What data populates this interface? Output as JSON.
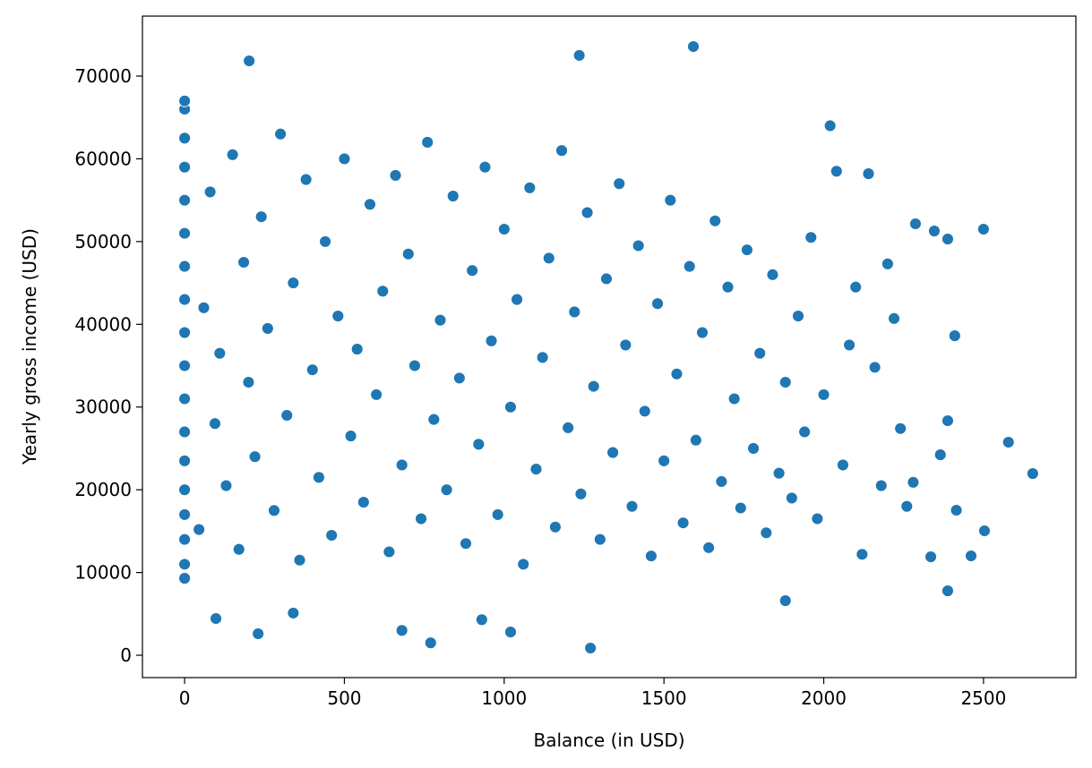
{
  "chart_data": {
    "type": "scatter",
    "xlabel": "Balance (in USD)",
    "ylabel": "Yearly gross income (USD)",
    "color": "#1f77b4",
    "xlim": [
      -132,
      2789
    ],
    "ylim": [
      -2700,
      77250
    ],
    "xticks": [
      0,
      500,
      1000,
      1500,
      2000,
      2500
    ],
    "yticks": [
      0,
      10000,
      20000,
      30000,
      40000,
      50000,
      60000,
      70000
    ],
    "x": [
      0,
      0,
      0,
      0,
      0,
      0,
      0,
      0,
      0,
      0,
      0,
      0,
      0,
      0,
      0,
      0,
      0,
      0,
      45,
      60,
      80,
      95,
      110,
      130,
      150,
      170,
      185,
      200,
      220,
      240,
      260,
      280,
      300,
      320,
      340,
      360,
      380,
      400,
      420,
      440,
      460,
      480,
      500,
      520,
      540,
      560,
      580,
      600,
      620,
      640,
      660,
      680,
      700,
      720,
      740,
      760,
      780,
      800,
      820,
      840,
      860,
      880,
      900,
      920,
      940,
      960,
      980,
      1000,
      1020,
      1040,
      1060,
      1080,
      1100,
      1120,
      1140,
      1160,
      1180,
      1200,
      1220,
      1240,
      1260,
      1280,
      1300,
      1320,
      1340,
      1360,
      1380,
      1400,
      1420,
      1440,
      1460,
      1480,
      1500,
      1520,
      1540,
      1560,
      1580,
      1600,
      1620,
      1640,
      1660,
      1680,
      1700,
      1720,
      1740,
      1760,
      1780,
      1800,
      1820,
      1840,
      1860,
      1880,
      1900,
      1920,
      1940,
      1960,
      1980,
      2000,
      2020,
      2040,
      2060,
      2080,
      2100,
      2120,
      2140,
      2160,
      2180,
      2200,
      2220,
      2240,
      2260,
      2280,
      2654,
      2578,
      2500,
      2503,
      2461,
      2410,
      2415,
      2388,
      2388,
      2388,
      2346,
      2365,
      2335,
      2287,
      1592,
      202,
      230,
      1020,
      98,
      1270,
      770,
      1235,
      680,
      930,
      340,
      1880
    ],
    "values": [
      9300,
      11000,
      14000,
      17000,
      20000,
      23500,
      27000,
      31000,
      35000,
      39000,
      43000,
      47000,
      51000,
      55000,
      59000,
      62500,
      66000,
      67000,
      15200,
      42000,
      56000,
      28000,
      36500,
      20500,
      60500,
      12800,
      47500,
      33000,
      24000,
      53000,
      39500,
      17500,
      63000,
      29000,
      45000,
      11500,
      57500,
      34500,
      21500,
      50000,
      14500,
      41000,
      60000,
      26500,
      37000,
      18500,
      54500,
      31500,
      44000,
      12500,
      58000,
      23000,
      48500,
      35000,
      16500,
      62000,
      28500,
      40500,
      20000,
      55500,
      33500,
      13500,
      46500,
      25500,
      59000,
      38000,
      17000,
      51500,
      30000,
      43000,
      11000,
      56500,
      22500,
      36000,
      48000,
      15500,
      61000,
      27500,
      41500,
      19500,
      53500,
      32500,
      14000,
      45500,
      24500,
      57000,
      37500,
      18000,
      49500,
      29500,
      12000,
      42500,
      23500,
      55000,
      34000,
      16000,
      47000,
      26000,
      39000,
      13000,
      52500,
      21000,
      44500,
      31000,
      17800,
      49000,
      25000,
      36500,
      14800,
      46000,
      22000,
      33000,
      19000,
      41000,
      27000,
      50500,
      16500,
      31500,
      64000,
      58500,
      23000,
      37500,
      44500,
      12200,
      58200,
      34800,
      20500,
      47300,
      40700,
      27400,
      18000,
      20900,
      21960,
      25750,
      51500,
      15040,
      12010,
      38620,
      17530,
      7790,
      28350,
      50300,
      51280,
      24230,
      11900,
      52150,
      73570,
      71840,
      2600,
      2810,
      4440,
      870,
      1500,
      72500,
      3000,
      4300,
      5100,
      6600
    ]
  }
}
